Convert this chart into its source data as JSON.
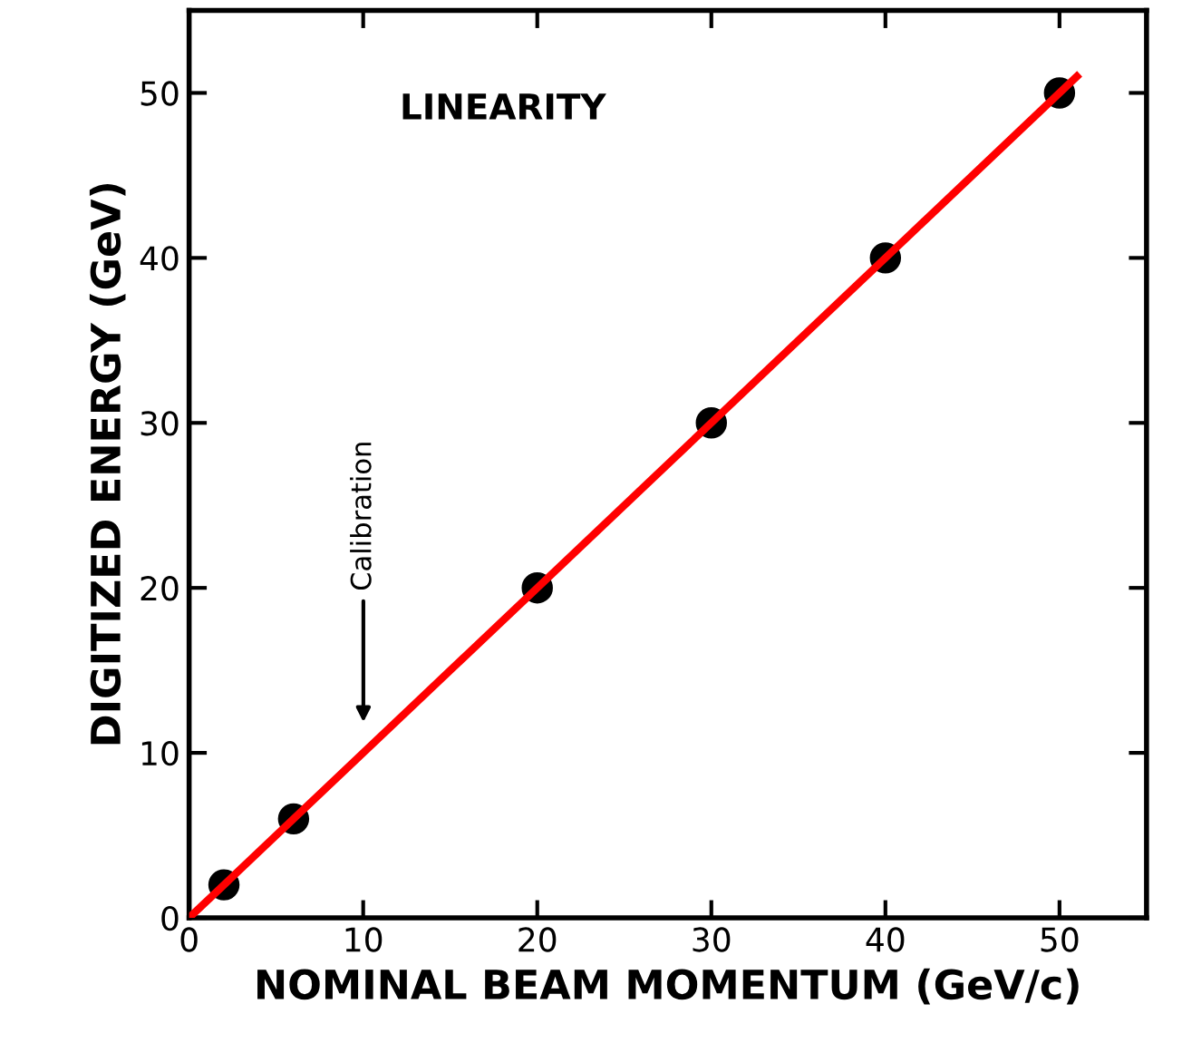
{
  "chart_data": {
    "type": "scatter",
    "xlabel": "NOMINAL BEAM MOMENTUM (GeV/c)",
    "ylabel": "DIGITIZED ENERGY (GeV)",
    "annotations": [
      "LINEARITY",
      "Calibration"
    ],
    "series": [
      {
        "color": "#000000",
        "x": [
          2,
          6,
          20,
          30,
          40,
          50
        ],
        "values": [
          2,
          6,
          20,
          30,
          40,
          50
        ],
        "marker": "circle"
      },
      {
        "type": "line",
        "color": "#ff0000",
        "x": [
          0,
          51
        ],
        "values": [
          0,
          51
        ],
        "marker": "none",
        "line_style": "solid"
      }
    ],
    "xlim": [
      0,
      55
    ],
    "ylim": [
      0,
      55
    ],
    "xticks": [
      0,
      10,
      20,
      30,
      40,
      50
    ],
    "yticks": [
      0,
      10,
      20,
      30,
      40,
      50
    ],
    "grid": false,
    "legend": false
  }
}
